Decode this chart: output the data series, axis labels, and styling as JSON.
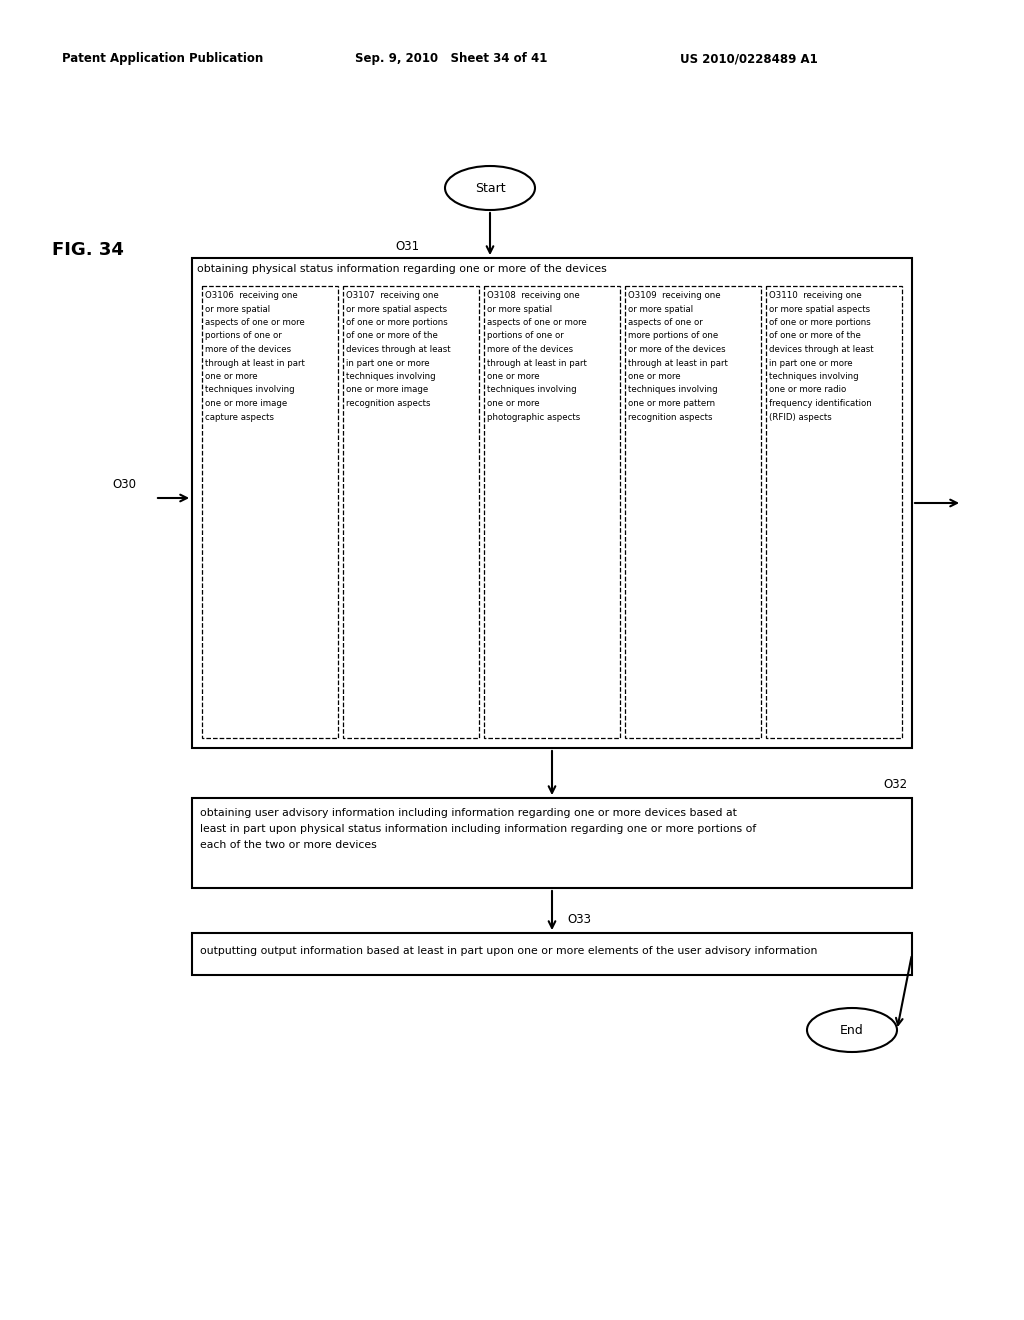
{
  "header_left": "Patent Application Publication",
  "header_mid": "Sep. 9, 2010   Sheet 34 of 41",
  "header_right": "US 2010/0228489 A1",
  "fig_label": "FIG. 34",
  "background_color": "#ffffff",
  "text_color": "#000000",
  "step_O30_label": "O30",
  "step_O31_label": "O31",
  "step_O32_label": "O32",
  "step_O33_label": "O33",
  "start_label": "Start",
  "end_label": "End",
  "box_title": "obtaining physical status information regarding one or more of the devices",
  "box_O32_text_line1": "obtaining user advisory information including information regarding one or more devices based at",
  "box_O32_text_line2": "least in part upon physical status information including information regarding one or more portions of",
  "box_O32_text_line3": "each of the two or more devices",
  "box_O33_text": "outputting output information based at least in part upon one or more elements of the user advisory information",
  "sub_O3106_lines": [
    "O3106  receiving one",
    "or more spatial",
    "aspects of one or more",
    "portions of one or",
    "more of the devices",
    "through at least in part",
    "one or more",
    "techniques involving",
    "one or more image",
    "capture aspects"
  ],
  "sub_O3107_lines": [
    "O3107  receiving one",
    "or more spatial aspects",
    "of one or more portions",
    "of one or more of the",
    "devices through at least",
    "in part one or more",
    "techniques involving",
    "one or more image",
    "recognition aspects"
  ],
  "sub_O3108_lines": [
    "O3108  receiving one",
    "or more spatial",
    "aspects of one or more",
    "portions of one or",
    "more of the devices",
    "through at least in part",
    "one or more",
    "techniques involving",
    "one or more",
    "photographic aspects"
  ],
  "sub_O3109_lines": [
    "O3109  receiving one",
    "or more spatial",
    "aspects of one or",
    "more portions of one",
    "or more of the devices",
    "through at least in part",
    "one or more",
    "techniques involving",
    "one or more pattern",
    "recognition aspects"
  ],
  "sub_O3110_lines": [
    "O3110  receiving one",
    "or more spatial aspects",
    "of one or more portions",
    "of one or more of the",
    "devices through at least",
    "in part one or more",
    "techniques involving",
    "one or more radio",
    "frequency identification",
    "(RFID) aspects"
  ]
}
